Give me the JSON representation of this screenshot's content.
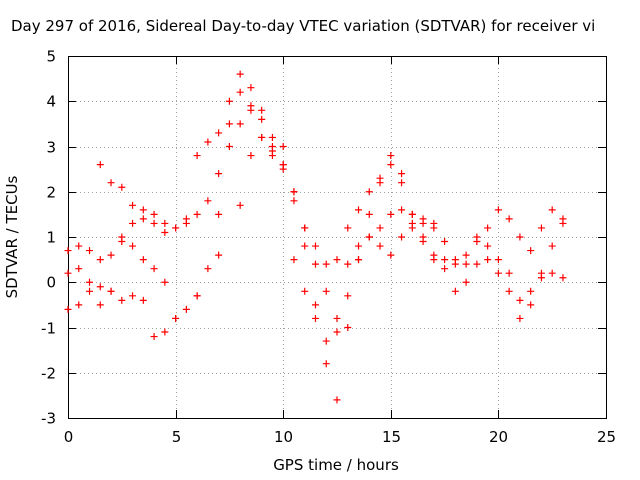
{
  "chart_data": {
    "type": "scatter",
    "title": "Day 297 of 2016, Sidereal Day-to-day VTEC variation (SDTVAR) for receiver vi",
    "xlabel": "GPS time / hours",
    "ylabel": "SDTVAR / TECUs",
    "xlim": [
      0,
      25
    ],
    "ylim": [
      -3,
      5
    ],
    "xticks": [
      "0",
      "5",
      "10",
      "15",
      "20",
      "25"
    ],
    "yticks": [
      "-3",
      "-2",
      "-1",
      "0",
      "1",
      "2",
      "3",
      "4",
      "5"
    ],
    "grid": true,
    "marker": "plus",
    "color": "#ff0000",
    "series": [
      {
        "x": [
          0.0,
          0.5,
          1.0,
          1.5,
          2.0,
          2.5,
          3.0,
          3.5,
          4.0,
          4.5,
          5.0,
          5.5,
          6.0,
          6.5,
          7.0,
          7.5,
          8.0,
          8.5,
          9.0,
          9.5,
          10.0,
          10.5,
          11.0,
          11.5,
          12.0,
          12.5,
          13.0,
          13.5,
          14.0,
          14.5,
          15.0,
          15.5,
          16.0,
          16.5,
          17.0
        ],
        "y": [
          0.2,
          0.3,
          0.0,
          -0.5,
          -0.2,
          1.0,
          0.8,
          0.5,
          0.3,
          0.0,
          -0.8,
          -0.6,
          -0.3,
          0.3,
          1.5,
          3.5,
          4.6,
          4.3,
          3.8,
          3.0,
          3.0,
          2.0,
          0.8,
          -0.5,
          -1.8,
          -2.6,
          -1.0,
          0.5,
          1.5,
          2.2,
          2.6,
          2.2,
          1.5,
          1.4,
          1.3
        ]
      },
      {
        "x": [
          1.5,
          2.0,
          2.5,
          3.0,
          3.5,
          4.0,
          4.5,
          5.0,
          5.5,
          6.0,
          6.5,
          7.0,
          7.5,
          8.0,
          8.5,
          9.0,
          9.5,
          10.0,
          10.5,
          11.0,
          11.5,
          12.0,
          12.5,
          13.0,
          13.5,
          14.0,
          14.5,
          15.0,
          15.5,
          16.0,
          16.5,
          17.0,
          17.5,
          18.0,
          18.5,
          19.0,
          19.5,
          20.0,
          20.5,
          21.0,
          21.5,
          22.0,
          22.5,
          23.0
        ],
        "y": [
          2.6,
          2.2,
          2.1,
          1.7,
          1.6,
          1.5,
          1.3,
          1.2,
          1.3,
          1.5,
          1.8,
          2.4,
          3.0,
          3.5,
          3.8,
          3.2,
          2.8,
          2.5,
          1.8,
          1.2,
          0.8,
          0.4,
          0.5,
          1.2,
          1.6,
          2.0,
          2.3,
          2.8,
          2.4,
          1.5,
          1.3,
          1.2,
          0.9,
          0.5,
          0.4,
          1.0,
          1.2,
          1.6,
          1.4,
          1.0,
          0.7,
          1.2,
          1.6,
          1.3
        ]
      },
      {
        "x": [
          0.0,
          0.5,
          1.0,
          1.5,
          2.0,
          2.5,
          3.0,
          3.5,
          4.0,
          4.5,
          5.0,
          6.0,
          7.0,
          8.0,
          8.5,
          9.0,
          9.5,
          10.0,
          10.5,
          11.0,
          11.5,
          12.0,
          12.5,
          13.0,
          13.5,
          14.0,
          14.5,
          15.0,
          15.5,
          16.0,
          16.5,
          17.0,
          17.5,
          18.0,
          18.5,
          19.0,
          19.5,
          20.0,
          20.5,
          21.0,
          21.5,
          22.0,
          22.5,
          23.0
        ],
        "y": [
          0.7,
          0.8,
          0.7,
          0.5,
          -0.2,
          -0.4,
          -0.3,
          -0.4,
          -1.2,
          -1.1,
          -0.8,
          -0.3,
          0.6,
          1.7,
          2.8,
          3.6,
          3.2,
          2.6,
          2.0,
          1.2,
          0.4,
          -0.2,
          -0.8,
          0.4,
          0.8,
          1.0,
          0.8,
          0.6,
          1.0,
          1.2,
          1.0,
          0.6,
          0.5,
          0.4,
          0.6,
          0.9,
          0.8,
          0.5,
          0.2,
          -0.4,
          -0.2,
          0.1,
          0.2,
          0.1
        ]
      },
      {
        "x": [
          0.0,
          0.5,
          1.0,
          1.5,
          2.0,
          2.5,
          3.0,
          3.5,
          4.0,
          4.5,
          5.0,
          5.5,
          6.0,
          6.5,
          7.0,
          7.5,
          8.0,
          8.5,
          9.0,
          9.5,
          10.0,
          10.5,
          11.0,
          11.5,
          12.0,
          12.5,
          13.0,
          13.5,
          14.0,
          14.5,
          15.0,
          15.5,
          16.0,
          16.5,
          17.0,
          17.5,
          18.0,
          18.5,
          19.0,
          19.5,
          20.0,
          20.5,
          21.0,
          21.5,
          22.0,
          22.5,
          23.0
        ],
        "y": [
          -0.6,
          -0.5,
          -0.2,
          -0.1,
          0.6,
          0.9,
          1.3,
          1.4,
          1.3,
          1.1,
          1.2,
          1.4,
          2.8,
          3.1,
          3.3,
          4.0,
          4.2,
          3.9,
          3.2,
          2.9,
          2.6,
          0.5,
          -0.2,
          -0.8,
          -1.3,
          -1.1,
          -0.3,
          0.5,
          1.0,
          1.2,
          1.5,
          1.6,
          1.3,
          0.9,
          0.5,
          0.3,
          -0.2,
          0.0,
          0.4,
          0.5,
          0.2,
          -0.2,
          -0.8,
          -0.5,
          0.2,
          0.8,
          1.4
        ]
      }
    ]
  }
}
